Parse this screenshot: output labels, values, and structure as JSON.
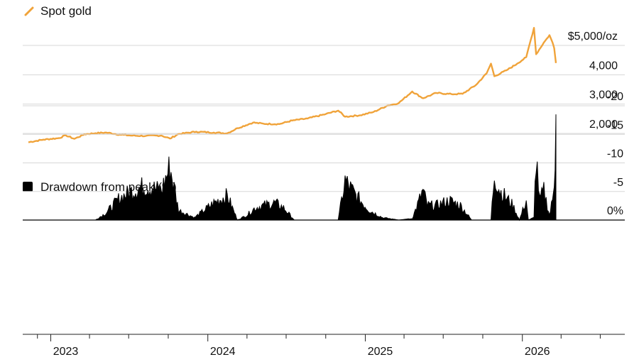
{
  "chart_data": [
    {
      "type": "line",
      "legend": [
        "Spot gold"
      ],
      "units": "$/oz",
      "color": "#F0A33A",
      "ylim": [
        1600,
        5400
      ],
      "ytick_values": [
        2000,
        3000,
        4000,
        5000
      ],
      "ytick_labels": [
        "2,000",
        "3,000",
        "4,000",
        "$5,000/oz"
      ],
      "grid": true,
      "series": [
        {
          "name": "Spot gold",
          "points": [
            [
              "2022-11-10",
              1700
            ],
            [
              "2022-12-15",
              1790
            ],
            [
              "2023-01-20",
              1840
            ],
            [
              "2023-02-05",
              1935
            ],
            [
              "2023-02-25",
              1815
            ],
            [
              "2023-03-20",
              1970
            ],
            [
              "2023-04-15",
              2010
            ],
            [
              "2023-05-10",
              2030
            ],
            [
              "2023-06-10",
              1960
            ],
            [
              "2023-07-10",
              1925
            ],
            [
              "2023-08-10",
              1915
            ],
            [
              "2023-09-15",
              1930
            ],
            [
              "2023-10-05",
              1825
            ],
            [
              "2023-10-25",
              1980
            ],
            [
              "2023-12-05",
              2060
            ],
            [
              "2024-01-15",
              2030
            ],
            [
              "2024-02-15",
              2005
            ],
            [
              "2024-03-10",
              2180
            ],
            [
              "2024-04-15",
              2370
            ],
            [
              "2024-05-10",
              2330
            ],
            [
              "2024-06-15",
              2320
            ],
            [
              "2024-07-15",
              2440
            ],
            [
              "2024-08-20",
              2510
            ],
            [
              "2024-10-01",
              2660
            ],
            [
              "2024-10-30",
              2780
            ],
            [
              "2024-11-15",
              2570
            ],
            [
              "2024-12-20",
              2620
            ],
            [
              "2025-01-20",
              2730
            ],
            [
              "2025-02-20",
              2940
            ],
            [
              "2025-03-20",
              3040
            ],
            [
              "2025-04-20",
              3430
            ],
            [
              "2025-05-15",
              3200
            ],
            [
              "2025-06-15",
              3380
            ],
            [
              "2025-07-20",
              3340
            ],
            [
              "2025-08-15",
              3350
            ],
            [
              "2025-09-15",
              3650
            ],
            [
              "2025-10-10",
              4050
            ],
            [
              "2025-10-20",
              4380
            ],
            [
              "2025-10-28",
              3950
            ],
            [
              "2025-11-25",
              4150
            ],
            [
              "2025-12-20",
              4380
            ],
            [
              "2026-01-10",
              4600
            ],
            [
              "2026-01-28",
              5600
            ],
            [
              "2026-02-02",
              4700
            ],
            [
              "2026-02-20",
              5100
            ],
            [
              "2026-03-05",
              5350
            ],
            [
              "2026-03-12",
              5100
            ],
            [
              "2026-03-16",
              4900
            ],
            [
              "2026-03-20",
              4400
            ]
          ]
        }
      ]
    },
    {
      "type": "area",
      "legend": [
        "Drawdown from peak (%)"
      ],
      "color": "#000000",
      "ylim": [
        -20,
        0
      ],
      "ytick_values": [
        0,
        -5,
        -10,
        -15,
        -20
      ],
      "ytick_labels": [
        "0%",
        "-5",
        "-10",
        "-15",
        "-20"
      ],
      "xlim": [
        "2022-11-10",
        "2026-03-20"
      ],
      "xticks": [
        "2023",
        "2024",
        "2025",
        "2026"
      ],
      "grid": true,
      "series": [
        {
          "name": "Drawdown from peak (%)",
          "points": [
            [
              "2023-04-15",
              0
            ],
            [
              "2023-05-10",
              -1.5
            ],
            [
              "2023-06-10",
              -4.5
            ],
            [
              "2023-07-10",
              -6
            ],
            [
              "2023-08-10",
              -7
            ],
            [
              "2023-09-15",
              -6
            ],
            [
              "2023-10-05",
              -11
            ],
            [
              "2023-10-25",
              -2
            ],
            [
              "2023-12-01",
              -0.5
            ],
            [
              "2024-01-15",
              -3.5
            ],
            [
              "2024-02-15",
              -5
            ],
            [
              "2024-03-10",
              0
            ],
            [
              "2024-04-01",
              -1
            ],
            [
              "2024-04-20",
              -2.5
            ],
            [
              "2024-05-10",
              -3
            ],
            [
              "2024-06-05",
              -3.5
            ],
            [
              "2024-06-25",
              -2.5
            ],
            [
              "2024-07-20",
              0
            ],
            [
              "2024-10-30",
              0
            ],
            [
              "2024-11-15",
              -8
            ],
            [
              "2024-12-10",
              -5
            ],
            [
              "2025-01-10",
              -2
            ],
            [
              "2025-02-10",
              -0.5
            ],
            [
              "2025-03-20",
              0
            ],
            [
              "2025-04-20",
              -0.3
            ],
            [
              "2025-05-15",
              -6
            ],
            [
              "2025-05-25",
              -3
            ],
            [
              "2025-06-15",
              -3
            ],
            [
              "2025-07-15",
              -4
            ],
            [
              "2025-08-10",
              -3
            ],
            [
              "2025-09-05",
              0
            ],
            [
              "2025-10-20",
              0
            ],
            [
              "2025-10-28",
              -9.5
            ],
            [
              "2025-11-10",
              -6
            ],
            [
              "2025-12-10",
              -3
            ],
            [
              "2025-12-25",
              0
            ],
            [
              "2026-01-10",
              -4
            ],
            [
              "2026-01-15",
              0
            ],
            [
              "2026-01-28",
              -0.5
            ],
            [
              "2026-02-02",
              -13.5
            ],
            [
              "2026-02-10",
              -4
            ],
            [
              "2026-02-20",
              -6
            ],
            [
              "2026-03-05",
              -1
            ],
            [
              "2026-03-12",
              -4
            ],
            [
              "2026-03-16",
              -9
            ],
            [
              "2026-03-20",
              -18.5
            ]
          ]
        }
      ]
    }
  ]
}
